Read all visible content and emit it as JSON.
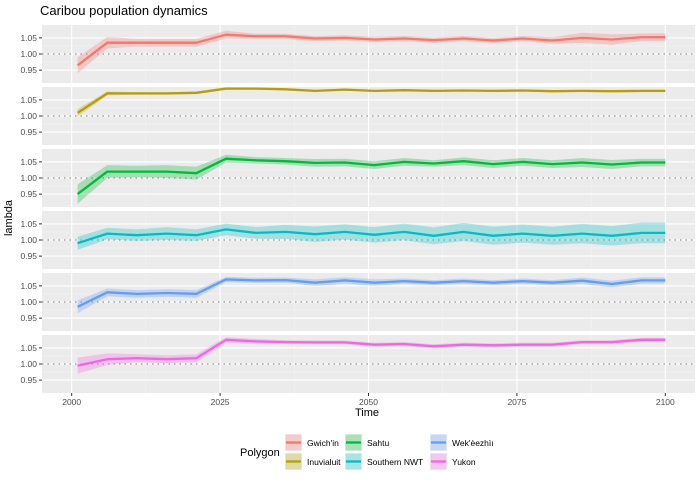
{
  "chart_data": {
    "type": "line",
    "title": "Caribou population dynamics",
    "xlabel": "Time",
    "ylabel": "lambda",
    "xlim": [
      1995,
      2105
    ],
    "ylim": [
      0.91,
      1.09
    ],
    "x_ticks": [
      2000,
      2025,
      2050,
      2075,
      2100
    ],
    "x_tick_labels": [
      "2000",
      "2025",
      "2050",
      "2075",
      "2100"
    ],
    "y_ticks": [
      0.95,
      1.0,
      1.05
    ],
    "y_tick_labels": [
      "0.95",
      "1.00",
      "1.05"
    ],
    "reference_line": 1.0,
    "grid": true,
    "legend": {
      "title": "Polygon",
      "position": "bottom"
    },
    "x": [
      2001,
      2006,
      2011,
      2016,
      2021,
      2026,
      2031,
      2036,
      2041,
      2046,
      2051,
      2056,
      2061,
      2066,
      2071,
      2076,
      2081,
      2086,
      2091,
      2096,
      2100
    ],
    "series": [
      {
        "name": "Gwich'in",
        "color": "#F8766D",
        "values": [
          0.965,
          1.035,
          1.035,
          1.035,
          1.035,
          1.06,
          1.055,
          1.055,
          1.048,
          1.05,
          1.045,
          1.048,
          1.043,
          1.048,
          1.042,
          1.048,
          1.042,
          1.05,
          1.045,
          1.052,
          1.052
        ],
        "half_band": [
          0.025,
          0.018,
          0.012,
          0.012,
          0.012,
          0.012,
          0.008,
          0.008,
          0.008,
          0.008,
          0.008,
          0.008,
          0.008,
          0.008,
          0.008,
          0.008,
          0.01,
          0.016,
          0.016,
          0.012,
          0.012
        ]
      },
      {
        "name": "Inuvialuit",
        "color": "#B79F00",
        "values": [
          1.01,
          1.07,
          1.07,
          1.07,
          1.072,
          1.085,
          1.085,
          1.083,
          1.078,
          1.082,
          1.078,
          1.08,
          1.078,
          1.079,
          1.078,
          1.079,
          1.077,
          1.078,
          1.077,
          1.078,
          1.078
        ],
        "half_band": [
          0.012,
          0.006,
          0.004,
          0.004,
          0.004,
          0.004,
          0.003,
          0.003,
          0.003,
          0.003,
          0.003,
          0.003,
          0.003,
          0.003,
          0.003,
          0.003,
          0.003,
          0.003,
          0.003,
          0.003,
          0.003
        ]
      },
      {
        "name": "Sahtu",
        "color": "#00BA38",
        "values": [
          0.95,
          1.02,
          1.02,
          1.02,
          1.015,
          1.06,
          1.055,
          1.052,
          1.047,
          1.048,
          1.04,
          1.05,
          1.045,
          1.052,
          1.043,
          1.05,
          1.043,
          1.048,
          1.042,
          1.048,
          1.048
        ],
        "half_band": [
          0.03,
          0.02,
          0.018,
          0.02,
          0.02,
          0.012,
          0.01,
          0.01,
          0.012,
          0.012,
          0.012,
          0.012,
          0.01,
          0.012,
          0.012,
          0.012,
          0.012,
          0.014,
          0.014,
          0.012,
          0.012
        ]
      },
      {
        "name": "Southern NWT",
        "color": "#00BFC4",
        "values": [
          0.99,
          1.02,
          1.015,
          1.02,
          1.015,
          1.033,
          1.022,
          1.025,
          1.018,
          1.025,
          1.016,
          1.025,
          1.013,
          1.025,
          1.013,
          1.02,
          1.013,
          1.02,
          1.013,
          1.022,
          1.022
        ],
        "half_band": [
          0.02,
          0.018,
          0.018,
          0.02,
          0.018,
          0.018,
          0.018,
          0.022,
          0.024,
          0.024,
          0.024,
          0.026,
          0.026,
          0.028,
          0.028,
          0.028,
          0.028,
          0.03,
          0.03,
          0.032,
          0.032
        ]
      },
      {
        "name": "Wek'èezhìı",
        "color": "#619CFF",
        "values": [
          0.985,
          1.03,
          1.025,
          1.028,
          1.025,
          1.07,
          1.067,
          1.068,
          1.06,
          1.067,
          1.06,
          1.065,
          1.06,
          1.065,
          1.06,
          1.065,
          1.06,
          1.066,
          1.056,
          1.067,
          1.067
        ],
        "half_band": [
          0.02,
          0.012,
          0.012,
          0.012,
          0.012,
          0.008,
          0.008,
          0.008,
          0.01,
          0.01,
          0.01,
          0.008,
          0.008,
          0.008,
          0.008,
          0.008,
          0.008,
          0.01,
          0.01,
          0.01,
          0.01
        ]
      },
      {
        "name": "Yukon",
        "color": "#F564E3",
        "values": [
          0.995,
          1.015,
          1.018,
          1.015,
          1.018,
          1.075,
          1.07,
          1.068,
          1.067,
          1.067,
          1.06,
          1.062,
          1.055,
          1.06,
          1.058,
          1.06,
          1.06,
          1.068,
          1.068,
          1.075,
          1.075
        ],
        "half_band": [
          0.025,
          0.018,
          0.012,
          0.012,
          0.012,
          0.008,
          0.008,
          0.006,
          0.006,
          0.006,
          0.006,
          0.006,
          0.006,
          0.006,
          0.006,
          0.006,
          0.006,
          0.006,
          0.006,
          0.006,
          0.006
        ]
      }
    ]
  }
}
